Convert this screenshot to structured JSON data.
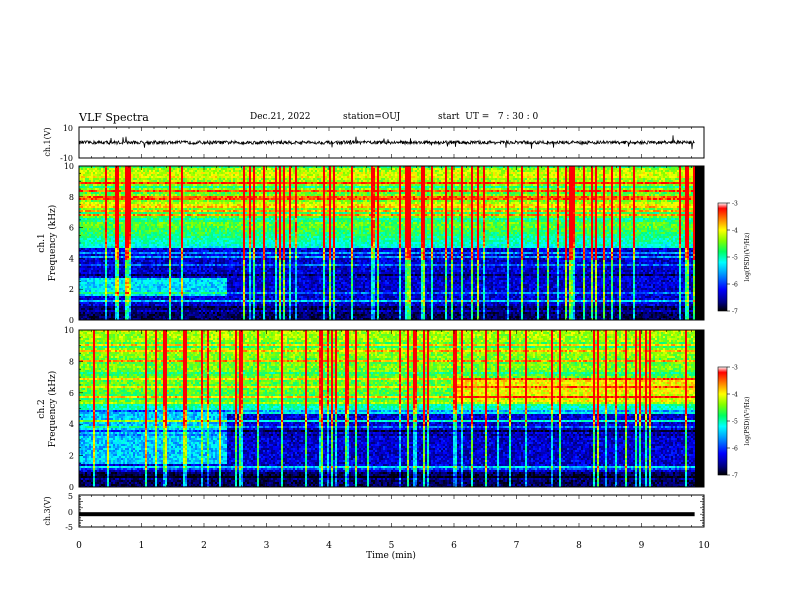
{
  "header": {
    "title": "VLF Spectra",
    "date": "Dec.21, 2022",
    "station": "station=OUJ",
    "start_ut": "start  UT =   7 : 30 : 0"
  },
  "chart_data": [
    {
      "type": "line",
      "panel": "ch1-waveform",
      "ylabel": "ch.1(V)",
      "ylim": [
        -10,
        10
      ],
      "yticks": [
        "10",
        "-10"
      ],
      "mean_level": 0,
      "trace_color": "#000000"
    },
    {
      "type": "heatmap",
      "panel": "ch1-spectrogram",
      "ylabel": "ch.1\nFrequency (kHz)",
      "ylabel_line1": "ch.1",
      "ylabel_line2": "Frequency (kHz)",
      "ylim": [
        0,
        10
      ],
      "yticks": [
        "0",
        "2",
        "4",
        "6",
        "8",
        "10"
      ],
      "colorbar": {
        "label": "log(PSD)(V²/Hz)",
        "ticks": [
          "-3",
          "-4",
          "-5",
          "-6",
          "-7"
        ],
        "range": [
          -7,
          -3
        ]
      }
    },
    {
      "type": "heatmap",
      "panel": "ch2-spectrogram",
      "ylabel_line1": "ch.2",
      "ylabel_line2": "Frequency (kHz)",
      "ylim": [
        0,
        10
      ],
      "yticks": [
        "0",
        "2",
        "4",
        "6",
        "8",
        "10"
      ],
      "colorbar": {
        "label": "log(PSD)(V²/Hz)",
        "ticks": [
          "-3",
          "-4",
          "-5",
          "-6",
          "-7"
        ],
        "range": [
          -7,
          -3
        ]
      }
    },
    {
      "type": "line",
      "panel": "ch3-waveform",
      "ylabel": "ch.3(V)",
      "ylim": [
        -5,
        5
      ],
      "yticks": [
        "5",
        "0",
        "-5"
      ],
      "level": -1,
      "trace_color": "#000000"
    }
  ],
  "xaxis": {
    "label": "Time (min)",
    "xlim": [
      0,
      10
    ],
    "ticks": [
      "0",
      "1",
      "2",
      "3",
      "4",
      "5",
      "6",
      "7",
      "8",
      "9",
      "10"
    ],
    "data_end": 9.85
  },
  "colors": {
    "colormap": [
      "#000000",
      "#000080",
      "#0000ff",
      "#0080ff",
      "#00ffff",
      "#00ff80",
      "#80ff00",
      "#ffff00",
      "#ff8000",
      "#ff0000",
      "#ffffff"
    ]
  }
}
